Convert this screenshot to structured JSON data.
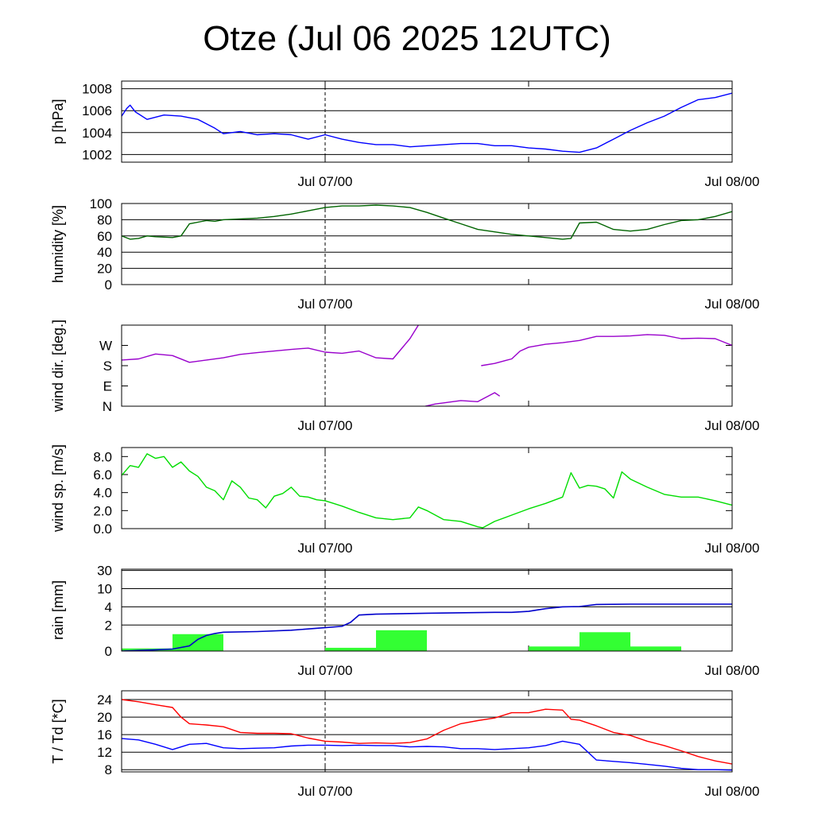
{
  "chart_data": {
    "title": "Otze (Jul 06 2025 12UTC)",
    "x_ticks": [
      "Jul 07/00",
      "Jul 08/00"
    ],
    "x_range_hours": [
      0,
      36
    ],
    "marker_hour": 12,
    "panels": [
      {
        "id": "pressure",
        "type": "line",
        "ylabel": "p [hPa]",
        "ylim": [
          1001.3,
          1008.7
        ],
        "yticks": [
          1002,
          1004,
          1006,
          1008
        ],
        "ytick_labels": [
          "1002",
          "1004",
          "1006",
          "1008"
        ],
        "grid": true,
        "series": [
          {
            "color": "#0000ff",
            "x": [
              0,
              0.3,
              0.5,
              0.8,
              1.5,
              2.5,
              3.5,
              4.5,
              5,
              5.5,
              6,
              7,
              8,
              9,
              10,
              11,
              12,
              13,
              14,
              15,
              16,
              17,
              18,
              19,
              20,
              21,
              22,
              23,
              24,
              25,
              26,
              27,
              28,
              29,
              30,
              31,
              32,
              33,
              34,
              35,
              36
            ],
            "y": [
              1005.5,
              1006.2,
              1006.5,
              1005.9,
              1005.2,
              1005.6,
              1005.5,
              1005.2,
              1004.8,
              1004.4,
              1003.9,
              1004.1,
              1003.8,
              1003.9,
              1003.8,
              1003.4,
              1003.8,
              1003.4,
              1003.1,
              1002.9,
              1002.9,
              1002.7,
              1002.8,
              1002.9,
              1003.0,
              1003.0,
              1002.8,
              1002.8,
              1002.6,
              1002.5,
              1002.3,
              1002.2,
              1002.6,
              1003.4,
              1004.2,
              1004.9,
              1005.5,
              1006.3,
              1007.0,
              1007.2,
              1007.6
            ]
          }
        ]
      },
      {
        "id": "humidity",
        "type": "line",
        "ylabel": "humidity [%]",
        "ylim": [
          0,
          100
        ],
        "yticks": [
          0,
          20,
          40,
          60,
          80,
          100
        ],
        "ytick_labels": [
          "0",
          "20",
          "40",
          "60",
          "80",
          "100"
        ],
        "grid": true,
        "series": [
          {
            "color": "#006400",
            "x": [
              0,
              0.5,
              1,
              1.5,
              2,
              3,
              3.5,
              4,
              5,
              5.5,
              6,
              7,
              8,
              9,
              10,
              11,
              12,
              13,
              14,
              15,
              16,
              17,
              18,
              19,
              20,
              21,
              22,
              23,
              24,
              25,
              26,
              26.5,
              27,
              28,
              29,
              30,
              31,
              32,
              33,
              34,
              35,
              36
            ],
            "y": [
              60,
              56,
              57,
              60,
              59,
              58,
              60,
              75,
              79,
              78,
              80,
              81,
              82,
              84,
              87,
              91,
              95,
              97,
              97,
              98,
              97,
              95,
              89,
              82,
              75,
              68,
              65,
              62,
              60,
              58,
              56,
              57,
              76,
              77,
              68,
              66,
              68,
              74,
              79,
              80,
              84,
              90
            ]
          }
        ]
      },
      {
        "id": "wind_direction",
        "type": "line",
        "ylabel": "wind dir. [deg.]",
        "ylim": [
          0,
          360
        ],
        "yticks": [
          0,
          90,
          180,
          270
        ],
        "ytick_labels": [
          "N",
          "E",
          "S",
          "W"
        ],
        "grid": false,
        "series": [
          {
            "color": "#9900cc",
            "x": [
              0,
              1,
              2,
              3,
              4,
              5,
              6,
              7,
              8,
              9,
              10,
              11,
              12,
              13,
              14,
              15,
              16,
              17,
              17.5
            ],
            "y": [
              205,
              210,
              232,
              225,
              195,
              205,
              215,
              230,
              238,
              245,
              252,
              258,
              240,
              235,
              245,
              215,
              210,
              300,
              360
            ]
          },
          {
            "color": "#9900cc",
            "x": [
              17.9,
              18.5,
              19,
              20,
              21,
              22,
              22.3
            ],
            "y": [
              0,
              10,
              15,
              25,
              20,
              60,
              45
            ]
          },
          {
            "color": "#9900cc",
            "x": [
              21.2,
              22,
              22.5,
              23,
              23.5,
              24,
              25,
              26,
              27,
              28,
              29,
              30,
              31,
              32,
              33,
              34,
              35,
              36
            ],
            "y": [
              180,
              190,
              200,
              210,
              245,
              262,
              275,
              282,
              292,
              310,
              310,
              312,
              318,
              315,
              300,
              302,
              300,
              270
            ]
          }
        ]
      },
      {
        "id": "wind_speed",
        "type": "line",
        "ylabel": "wind sp. [m/s]",
        "ylim": [
          0,
          9
        ],
        "yticks": [
          0,
          2,
          4,
          6,
          8
        ],
        "ytick_labels": [
          "0.0",
          "2.0",
          "4.0",
          "6.0",
          "8.0"
        ],
        "grid": false,
        "series": [
          {
            "color": "#00dd00",
            "x": [
              0,
              0.5,
              1,
              1.5,
              2,
              2.5,
              3,
              3.5,
              4,
              4.5,
              5,
              5.5,
              6,
              6.5,
              7,
              7.5,
              8,
              8.5,
              9,
              9.5,
              10,
              10.5,
              11,
              11.5,
              12,
              12.5,
              13,
              14,
              15,
              16,
              17,
              17.5,
              18,
              19,
              20,
              21,
              21.3,
              22,
              23,
              24,
              25,
              26,
              26.5,
              27,
              27.5,
              28,
              28.5,
              29,
              29.5,
              30,
              31,
              32,
              33,
              34,
              35,
              36
            ],
            "y": [
              5.9,
              7.0,
              6.8,
              8.3,
              7.8,
              8.0,
              6.8,
              7.4,
              6.4,
              5.8,
              4.6,
              4.2,
              3.2,
              5.3,
              4.6,
              3.4,
              3.2,
              2.3,
              3.6,
              3.9,
              4.6,
              3.6,
              3.5,
              3.2,
              3.1,
              2.8,
              2.5,
              1.8,
              1.2,
              1.0,
              1.2,
              2.4,
              2.0,
              1.0,
              0.8,
              0.2,
              0.1,
              0.8,
              1.5,
              2.2,
              2.8,
              3.5,
              6.2,
              4.5,
              4.8,
              4.7,
              4.4,
              3.4,
              6.3,
              5.5,
              4.6,
              3.8,
              3.5,
              3.5,
              3.1,
              2.6
            ]
          }
        ]
      },
      {
        "id": "rain",
        "type": "bar+line",
        "ylabel": "rain [mm]",
        "ylim_transformed": [
          0,
          6.3
        ],
        "yticks": [
          0,
          2,
          4,
          10,
          30
        ],
        "ytick_labels": [
          "0",
          "2",
          "4",
          "10",
          "30"
        ],
        "grid": true,
        "bars_color": "#33ff33",
        "bars_hour_bins": [
          [
            0,
            3
          ],
          [
            3,
            6
          ],
          [
            6,
            9
          ],
          [
            9,
            12
          ],
          [
            12,
            15
          ],
          [
            15,
            18
          ],
          [
            18,
            21
          ],
          [
            21,
            24
          ],
          [
            24,
            27
          ],
          [
            27,
            30
          ],
          [
            30,
            33
          ],
          [
            33,
            36
          ]
        ],
        "bars_mm": [
          0.2,
          1.3,
          0,
          0,
          0.25,
          1.6,
          0,
          0,
          0.35,
          1.45,
          0.35,
          0
        ],
        "cumulative_color": "#0000cc",
        "cumulative_x": [
          0,
          1,
          2,
          3,
          4,
          4.5,
          5,
          5.5,
          6,
          8,
          10,
          11,
          12,
          13,
          13.5,
          14,
          15,
          18,
          22,
          23,
          24,
          25,
          26,
          27,
          28,
          30,
          33,
          36
        ],
        "cumulative_mm": [
          0,
          0.05,
          0.1,
          0.15,
          0.4,
          0.9,
          1.2,
          1.35,
          1.45,
          1.5,
          1.6,
          1.7,
          1.8,
          1.9,
          2.3,
          3.1,
          3.2,
          3.3,
          3.4,
          3.4,
          3.5,
          3.8,
          4.0,
          4.1,
          4.8,
          4.9,
          4.9,
          4.9
        ]
      },
      {
        "id": "temperature",
        "type": "line",
        "ylabel": "T / Td [*C]",
        "ylim": [
          7.5,
          26
        ],
        "yticks": [
          8,
          12,
          16,
          20,
          24
        ],
        "ytick_labels": [
          "8",
          "12",
          "16",
          "20",
          "24"
        ],
        "grid": true,
        "series": [
          {
            "color": "#ff0000",
            "x": [
              0,
              1,
              2,
              3,
              3.5,
              4,
              5,
              6,
              7,
              8,
              9,
              10,
              11,
              12,
              13,
              14,
              15,
              16,
              17,
              18,
              19,
              20,
              21,
              22,
              23,
              24,
              25,
              26,
              26.5,
              27,
              28,
              29,
              30,
              31,
              32,
              33,
              34,
              35,
              36
            ],
            "y": [
              24.0,
              23.5,
              22.8,
              22.2,
              20.0,
              18.5,
              18.2,
              17.8,
              16.5,
              16.3,
              16.3,
              16.2,
              15.2,
              14.5,
              14.3,
              14.0,
              14.1,
              14.0,
              14.2,
              15.0,
              17.0,
              18.5,
              19.2,
              19.8,
              21.0,
              21.0,
              21.8,
              21.6,
              19.5,
              19.3,
              18.0,
              16.5,
              15.8,
              14.5,
              13.5,
              12.3,
              11.0,
              10.0,
              9.3
            ]
          },
          {
            "color": "#0000ff",
            "x": [
              0,
              1,
              2,
              3,
              4,
              5,
              6,
              7,
              8,
              9,
              10,
              11,
              12,
              13,
              14,
              15,
              16,
              17,
              18,
              19,
              20,
              21,
              22,
              23,
              24,
              25,
              26,
              27,
              28,
              29,
              30,
              31,
              32,
              33,
              34,
              35,
              36
            ],
            "y": [
              15.1,
              14.8,
              13.8,
              12.6,
              13.8,
              14.0,
              13.0,
              12.8,
              12.9,
              13.0,
              13.4,
              13.6,
              13.6,
              13.5,
              13.6,
              13.5,
              13.5,
              13.2,
              13.3,
              13.2,
              12.8,
              12.8,
              12.6,
              12.8,
              13.0,
              13.5,
              14.5,
              13.8,
              10.2,
              9.9,
              9.6,
              9.2,
              8.8,
              8.3,
              8.0,
              8.0,
              7.9
            ]
          }
        ]
      }
    ]
  }
}
